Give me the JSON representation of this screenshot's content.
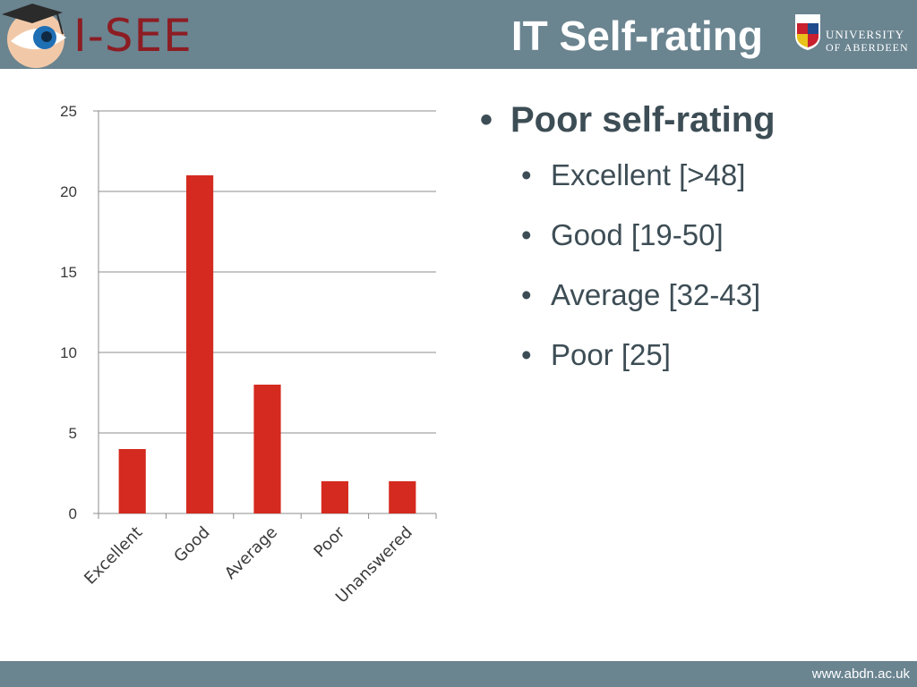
{
  "header": {
    "logo_text": "I-SEE",
    "title": "IT Self-rating",
    "university_line1": "UNIVERSITY",
    "university_line2": "OF ABERDEEN"
  },
  "bullets": {
    "main": "Poor self-rating",
    "sub": [
      "Excellent [>48]",
      "Good [19-50]",
      "Average [32-43]",
      "Poor [25]"
    ]
  },
  "footer": {
    "url": "www.abdn.ac.uk"
  },
  "colors": {
    "bar": "#d42a1f",
    "band": "#6a8490",
    "text": "#3d4d55"
  },
  "chart_data": {
    "type": "bar",
    "categories": [
      "Excellent",
      "Good",
      "Average",
      "Poor",
      "Unanswered"
    ],
    "values": [
      4,
      21,
      8,
      2,
      2
    ],
    "ylim": [
      0,
      25
    ],
    "yticks": [
      0,
      5,
      10,
      15,
      20,
      25
    ],
    "grid": true,
    "legend": "none"
  }
}
